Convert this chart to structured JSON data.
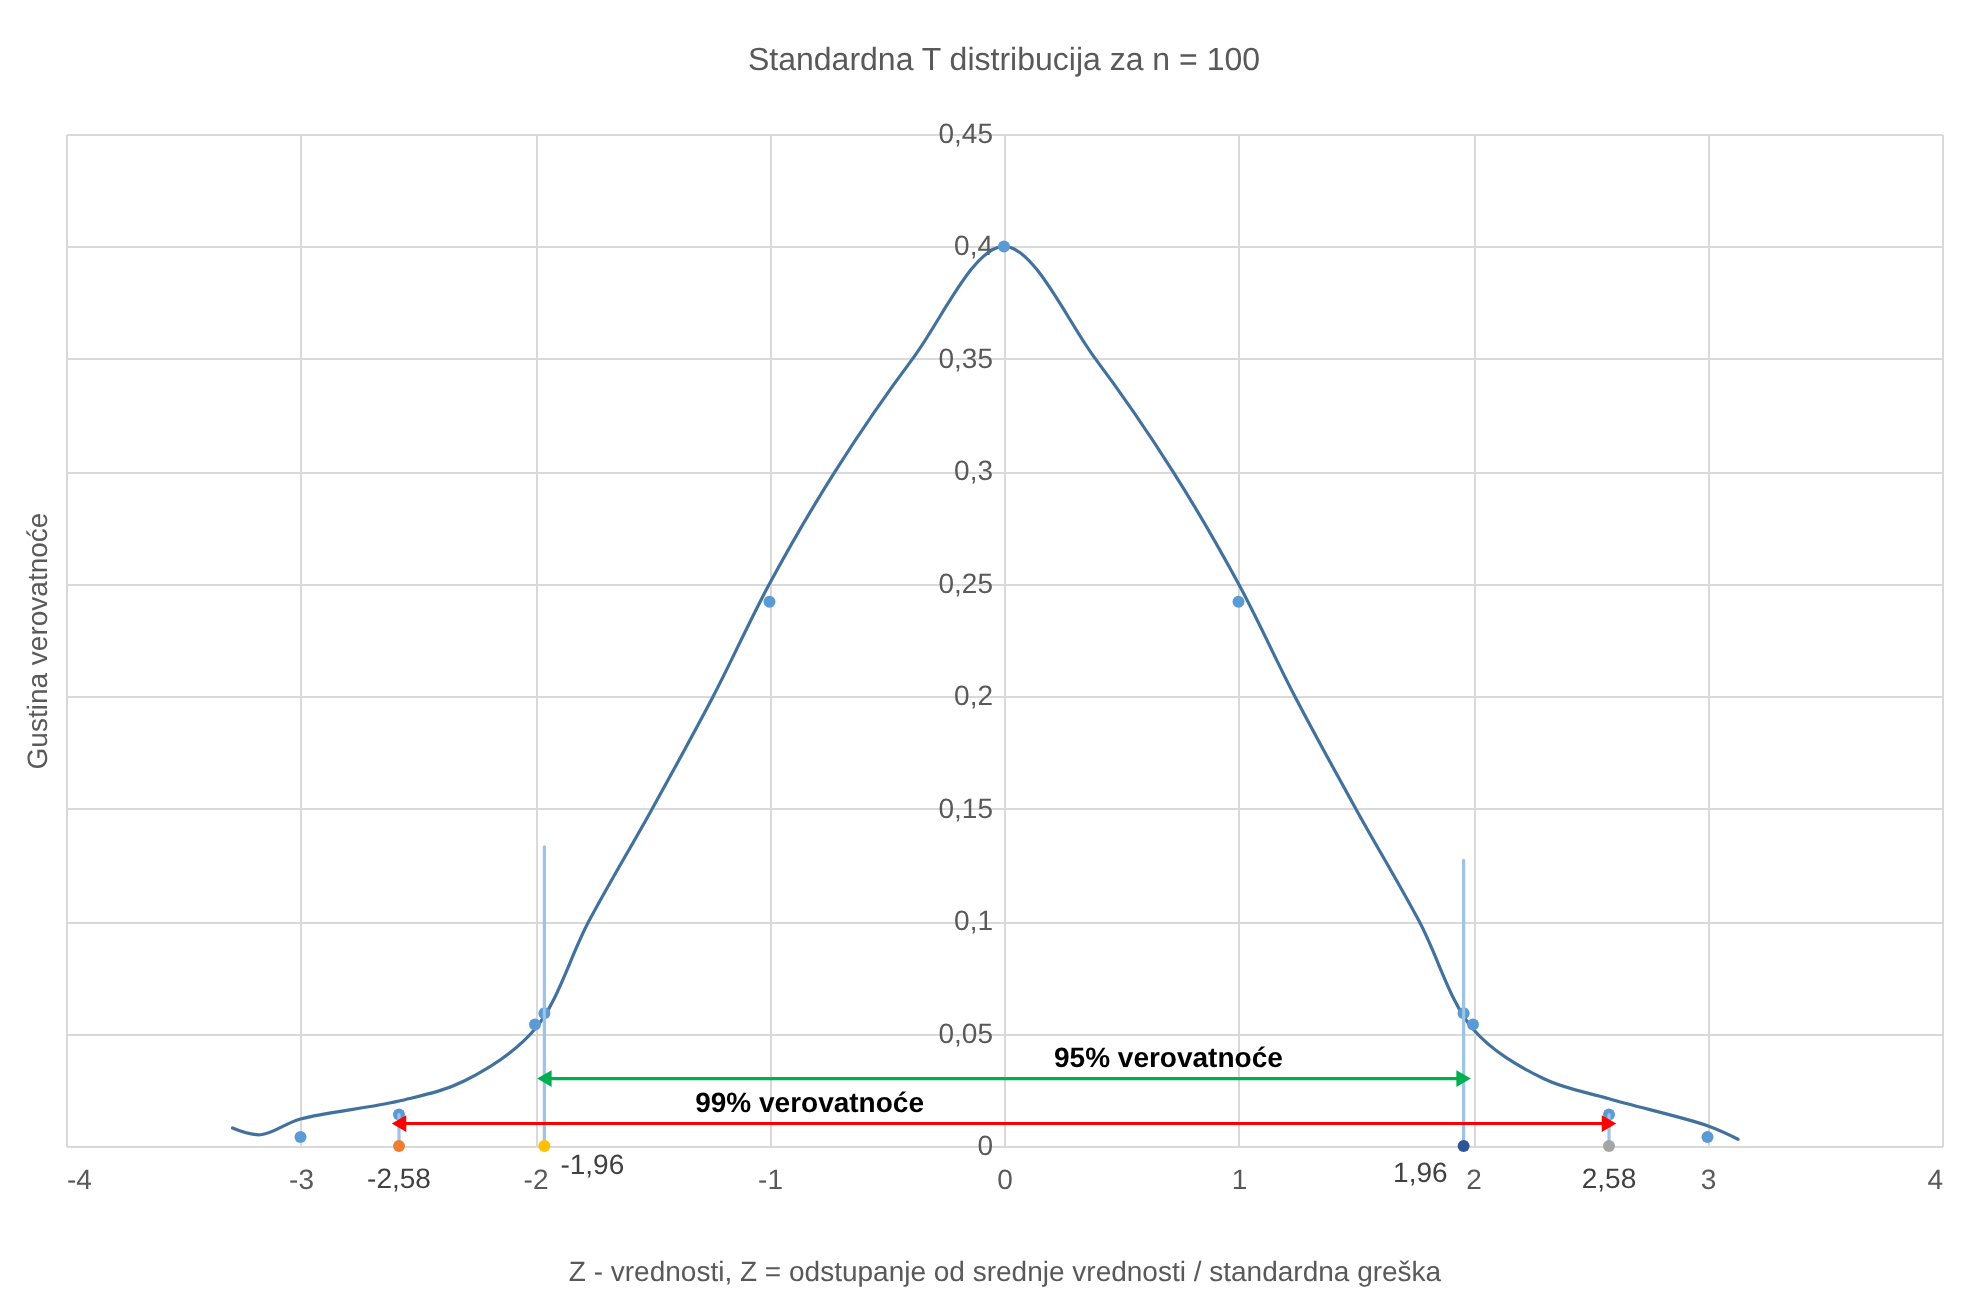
{
  "chart_data": {
    "type": "line",
    "title": "Standardna T distribucija za n = 100",
    "xlabel": "Z - vrednosti, Z = odstupanje od srednje vrednosti / standardna greška",
    "ylabel": "Gustina verovatnoće",
    "xlim": [
      -4,
      4
    ],
    "xticks": [
      -4,
      -3,
      -2,
      -1,
      0,
      1,
      2,
      3,
      4
    ],
    "ylim": [
      0,
      0.45
    ],
    "yticks": [
      {
        "value": 0,
        "label": "0"
      },
      {
        "value": 0.05,
        "label": "0,05"
      },
      {
        "value": 0.1,
        "label": "0,1"
      },
      {
        "value": 0.15,
        "label": "0,15"
      },
      {
        "value": 0.2,
        "label": "0,2"
      },
      {
        "value": 0.25,
        "label": "0,25"
      },
      {
        "value": 0.3,
        "label": "0,3"
      },
      {
        "value": 0.35,
        "label": "0,35"
      },
      {
        "value": 0.4,
        "label": "0,4"
      },
      {
        "value": 0.45,
        "label": "0,45"
      }
    ],
    "grid": true,
    "series": [
      {
        "type": "line",
        "marker": "none",
        "color": "#41719c",
        "x": [
          -3.29,
          -3.17,
          -3,
          -2.58,
          -2.3,
          -2,
          -1.77,
          -1.5,
          -1.24,
          -1,
          -0.72,
          -0.39,
          0,
          0.39,
          0.72,
          1,
          1.24,
          1.5,
          1.77,
          2,
          2.3,
          2.58,
          3,
          3.13
        ],
        "values": [
          0.008,
          0.005,
          0.012,
          0.02,
          0.029,
          0.052,
          0.1,
          0.15,
          0.2,
          0.25,
          0.3,
          0.35,
          0.4,
          0.35,
          0.3,
          0.25,
          0.2,
          0.15,
          0.1,
          0.052,
          0.03,
          0.021,
          0.009,
          0.003
        ]
      },
      {
        "type": "scatter",
        "marker": "circle",
        "color": "#5b9bd5",
        "x": [
          -3,
          -2.58,
          -2,
          -1.96,
          -1,
          0,
          1,
          1.96,
          2,
          2.58,
          3
        ],
        "values": [
          0.004,
          0.014,
          0.054,
          0.059,
          0.242,
          0.4,
          0.242,
          0.059,
          0.054,
          0.014,
          0.004
        ]
      },
      {
        "marker": "none",
        "color": "#9dc3e6",
        "x": [
          -1.96,
          -1.96
        ],
        "values": [
          0,
          0.133
        ]
      },
      {
        "marker": "none",
        "color": "#9dc3e6",
        "x": [
          1.96,
          1.96
        ],
        "values": [
          0,
          0.127
        ]
      },
      {
        "marker": "none",
        "color": "#9dc3e6",
        "x": [
          -2.58,
          -2.58
        ],
        "values": [
          0,
          0.014
        ]
      },
      {
        "marker": "none",
        "color": "#9dc3e6",
        "x": [
          2.58,
          2.58
        ],
        "values": [
          0,
          0.014
        ]
      },
      {
        "marker": "triangle",
        "name": "95% verovatnoće",
        "color": "#00b050",
        "x": [
          -1.96,
          1.96
        ],
        "values": [
          0.03,
          0.03
        ]
      },
      {
        "marker": "triangle",
        "name": "99% verovatnoće",
        "color": "#ff0000",
        "x": [
          -2.58,
          2.58
        ],
        "values": [
          0.01,
          0.01
        ]
      },
      {
        "type": "scatter",
        "marker": "circle",
        "color": "#ed7d31",
        "x": [
          -2.58
        ],
        "values": [
          0
        ]
      },
      {
        "type": "scatter",
        "marker": "circle",
        "color": "#ffc000",
        "x": [
          -1.96
        ],
        "values": [
          0
        ]
      },
      {
        "type": "scatter",
        "marker": "circle",
        "color": "#2f5597",
        "x": [
          1.96
        ],
        "values": [
          0
        ]
      },
      {
        "type": "scatter",
        "marker": "circle",
        "color": "#a5a5a5",
        "x": [
          2.58
        ],
        "values": [
          0
        ]
      }
    ],
    "annotations": [
      {
        "text": "-2,58",
        "x": -2.58,
        "y": 0
      },
      {
        "text": "-1,96",
        "x": -1.96,
        "y": 0
      },
      {
        "text": "1,96",
        "x": 1.96,
        "y": 0
      },
      {
        "text": "2,58",
        "x": 2.58,
        "y": 0
      }
    ]
  }
}
